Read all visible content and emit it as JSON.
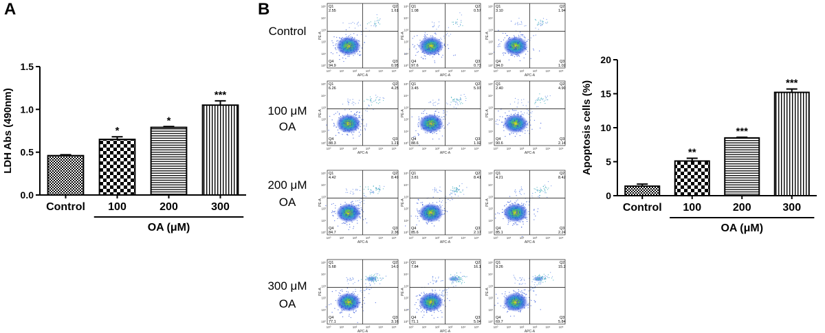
{
  "panels": {
    "a_letter": "A",
    "b_letter": "B"
  },
  "flow": {
    "rows": [
      {
        "label_lines": [
          "Control"
        ],
        "plots": [
          {
            "q1": "2.55",
            "q2": "1.61",
            "q3": "0.95",
            "q4": "94.9"
          },
          {
            "q1": "1.08",
            "q2": "0.57",
            "q3": "0.73",
            "q4": "97.6"
          },
          {
            "q1": "3.10",
            "q2": "1.94",
            "q3": "1.02",
            "q4": "94.0"
          }
        ]
      },
      {
        "label_lines": [
          "100 μM",
          "OA"
        ],
        "plots": [
          {
            "q1": "6.26",
            "q2": "4.25",
            "q3": "1.21",
            "q4": "88.3"
          },
          {
            "q1": "3.45",
            "q2": "5.97",
            "q3": "1.92",
            "q4": "88.6"
          },
          {
            "q1": "2.40",
            "q2": "4.90",
            "q3": "2.14",
            "q4": "90.6"
          }
        ]
      },
      {
        "label_lines": [
          "200 μM",
          "OA"
        ],
        "plots": [
          {
            "q1": "4.42",
            "q2": "8.49",
            "q3": "2.36",
            "q4": "84.7"
          },
          {
            "q1": "3.81",
            "q2": "8.41",
            "q3": "2.17",
            "q4": "85.6"
          },
          {
            "q1": "4.21",
            "q2": "8.42",
            "q3": "2.24",
            "q4": "85.1"
          }
        ]
      },
      {
        "label_lines": [
          "300 μM",
          "OA"
        ],
        "plots": [
          {
            "q1": "5.68",
            "q2": "14.0",
            "q3": "3.16",
            "q4": "77.1"
          },
          {
            "q1": "7.84",
            "q2": "16.1",
            "q3": "5.04",
            "q4": "71.1"
          },
          {
            "q1": "9.26",
            "q2": "15.2",
            "q3": "5.84",
            "q4": "69.7"
          }
        ]
      }
    ],
    "quadrant_names": {
      "q1": "Q1",
      "q2": "Q2",
      "q3": "Q3",
      "q4": "Q4"
    },
    "xlabel": "APC-A",
    "ylabel": "PE-A",
    "tick_labels": [
      "10⁰",
      "10¹",
      "10²",
      "10³",
      "10⁴",
      "10⁵"
    ]
  },
  "chart_data": [
    {
      "type": "bar",
      "categories": [
        "Control",
        "100",
        "200",
        "300"
      ],
      "values": [
        0.46,
        0.65,
        0.79,
        1.05
      ],
      "errors": [
        0.01,
        0.03,
        0.01,
        0.05
      ],
      "significance": [
        "",
        "*",
        "*",
        "***"
      ],
      "ylabel": "LDH Abs (490nm)",
      "ylim": [
        0.0,
        1.5
      ],
      "yticks": [
        "0.0",
        "0.5",
        "1.0",
        "1.5"
      ],
      "group_label": "OA (μM)",
      "patterns": [
        "fine-check",
        "checker",
        "horizontal-lines",
        "vertical-lines"
      ]
    },
    {
      "type": "bar",
      "categories": [
        "Control",
        "100",
        "200",
        "300"
      ],
      "values": [
        1.4,
        5.1,
        8.5,
        15.2
      ],
      "errors": [
        0.3,
        0.4,
        0.1,
        0.5
      ],
      "significance": [
        "",
        "**",
        "***",
        "***"
      ],
      "ylabel": "Apoptosis cells (%)",
      "ylim": [
        0,
        20
      ],
      "yticks": [
        "0",
        "5",
        "10",
        "15",
        "20"
      ],
      "group_label": "OA (μM)",
      "patterns": [
        "fine-check",
        "checker",
        "horizontal-lines",
        "vertical-lines"
      ]
    }
  ]
}
